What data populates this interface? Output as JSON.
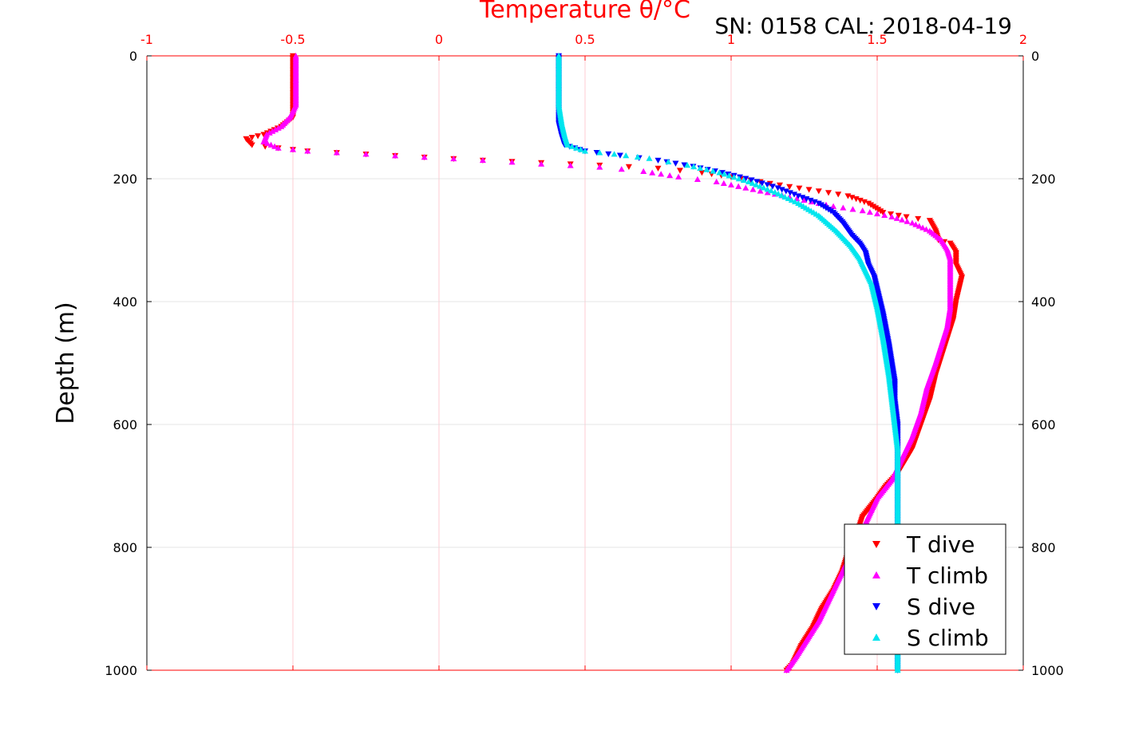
{
  "chart_data": {
    "type": "scatter",
    "title": "",
    "annotation": "SN: 0158  CAL: 2018-04-19",
    "xlabel": "Temperature θ/°C",
    "ylabel": "Depth (m)",
    "xlim": [
      -1,
      2
    ],
    "ylim": [
      1000,
      0
    ],
    "x_ticks": [
      "-1",
      "-0.5",
      "0",
      "0.5",
      "1",
      "1.5",
      "2"
    ],
    "y_ticks": [
      "0",
      "200",
      "400",
      "600",
      "800",
      "1000"
    ],
    "x_axis_position": "top",
    "y_axis_reversed": true,
    "grid": true,
    "legend_position": "bottom-right",
    "series": [
      {
        "name": "T dive",
        "color": "#ff0000",
        "marker": "triangle-down",
        "points": [
          [
            -0.5,
            0
          ],
          [
            -0.5,
            40
          ],
          [
            -0.5,
            80
          ],
          [
            -0.5,
            100
          ],
          [
            -0.54,
            115
          ],
          [
            -0.6,
            128
          ],
          [
            -0.66,
            135
          ],
          [
            -0.64,
            145
          ],
          [
            -0.55,
            150
          ],
          [
            -0.45,
            155
          ],
          [
            -0.25,
            160
          ],
          [
            -0.05,
            165
          ],
          [
            0.15,
            170
          ],
          [
            0.35,
            174
          ],
          [
            0.55,
            178
          ],
          [
            0.75,
            183
          ],
          [
            0.9,
            190
          ],
          [
            1.0,
            197
          ],
          [
            1.1,
            205
          ],
          [
            1.2,
            213
          ],
          [
            1.3,
            220
          ],
          [
            1.4,
            228
          ],
          [
            1.47,
            240
          ],
          [
            1.52,
            255
          ],
          [
            1.6,
            262
          ],
          [
            1.68,
            268
          ],
          [
            1.7,
            285
          ],
          [
            1.71,
            300
          ],
          [
            1.75,
            305
          ],
          [
            1.77,
            320
          ],
          [
            1.77,
            340
          ],
          [
            1.79,
            360
          ],
          [
            1.78,
            380
          ],
          [
            1.77,
            400
          ],
          [
            1.76,
            430
          ],
          [
            1.74,
            460
          ],
          [
            1.72,
            490
          ],
          [
            1.7,
            520
          ],
          [
            1.68,
            560
          ],
          [
            1.65,
            600
          ],
          [
            1.62,
            640
          ],
          [
            1.57,
            680
          ],
          [
            1.53,
            700
          ],
          [
            1.5,
            720
          ],
          [
            1.45,
            750
          ],
          [
            1.43,
            780
          ],
          [
            1.4,
            810
          ],
          [
            1.38,
            840
          ],
          [
            1.35,
            870
          ],
          [
            1.31,
            900
          ],
          [
            1.28,
            930
          ],
          [
            1.24,
            960
          ],
          [
            1.21,
            990
          ],
          [
            1.19,
            1000
          ]
        ]
      },
      {
        "name": "T climb",
        "color": "#ff00ff",
        "marker": "triangle-up",
        "points": [
          [
            -0.49,
            0
          ],
          [
            -0.49,
            40
          ],
          [
            -0.49,
            80
          ],
          [
            -0.51,
            100
          ],
          [
            -0.54,
            115
          ],
          [
            -0.59,
            128
          ],
          [
            -0.6,
            140
          ],
          [
            -0.55,
            150
          ],
          [
            -0.45,
            155
          ],
          [
            -0.25,
            160
          ],
          [
            -0.05,
            165
          ],
          [
            0.15,
            170
          ],
          [
            0.35,
            176
          ],
          [
            0.55,
            181
          ],
          [
            0.7,
            188
          ],
          [
            0.82,
            197
          ],
          [
            0.95,
            205
          ],
          [
            1.05,
            215
          ],
          [
            1.15,
            225
          ],
          [
            1.25,
            235
          ],
          [
            1.35,
            245
          ],
          [
            1.45,
            252
          ],
          [
            1.55,
            262
          ],
          [
            1.62,
            272
          ],
          [
            1.68,
            285
          ],
          [
            1.72,
            300
          ],
          [
            1.74,
            315
          ],
          [
            1.75,
            330
          ],
          [
            1.75,
            350
          ],
          [
            1.75,
            370
          ],
          [
            1.75,
            390
          ],
          [
            1.75,
            410
          ],
          [
            1.74,
            440
          ],
          [
            1.72,
            470
          ],
          [
            1.7,
            500
          ],
          [
            1.67,
            540
          ],
          [
            1.65,
            580
          ],
          [
            1.62,
            620
          ],
          [
            1.58,
            660
          ],
          [
            1.55,
            690
          ],
          [
            1.5,
            720
          ],
          [
            1.46,
            760
          ],
          [
            1.42,
            800
          ],
          [
            1.39,
            830
          ],
          [
            1.36,
            860
          ],
          [
            1.33,
            890
          ],
          [
            1.3,
            920
          ],
          [
            1.26,
            950
          ],
          [
            1.22,
            980
          ],
          [
            1.19,
            1000
          ]
        ]
      },
      {
        "name": "S dive",
        "color": "#0000ff",
        "marker": "triangle-down",
        "points": [
          [
            0.41,
            0
          ],
          [
            0.41,
            40
          ],
          [
            0.41,
            80
          ],
          [
            0.41,
            110
          ],
          [
            0.42,
            130
          ],
          [
            0.43,
            145
          ],
          [
            0.5,
            155
          ],
          [
            0.62,
            162
          ],
          [
            0.75,
            170
          ],
          [
            0.87,
            180
          ],
          [
            0.97,
            190
          ],
          [
            1.07,
            202
          ],
          [
            1.16,
            215
          ],
          [
            1.23,
            228
          ],
          [
            1.3,
            240
          ],
          [
            1.35,
            255
          ],
          [
            1.38,
            270
          ],
          [
            1.41,
            290
          ],
          [
            1.44,
            305
          ],
          [
            1.46,
            320
          ],
          [
            1.47,
            340
          ],
          [
            1.49,
            360
          ],
          [
            1.5,
            380
          ],
          [
            1.51,
            400
          ],
          [
            1.52,
            420
          ],
          [
            1.53,
            445
          ],
          [
            1.54,
            470
          ],
          [
            1.55,
            500
          ],
          [
            1.56,
            530
          ],
          [
            1.56,
            560
          ],
          [
            1.57,
            600
          ],
          [
            1.57,
            640
          ],
          [
            1.57,
            680
          ],
          [
            1.57,
            720
          ],
          [
            1.57,
            760
          ],
          [
            1.57,
            800
          ],
          [
            1.57,
            850
          ],
          [
            1.57,
            900
          ],
          [
            1.57,
            950
          ],
          [
            1.57,
            1000
          ]
        ]
      },
      {
        "name": "S climb",
        "color": "#00e5ee",
        "marker": "triangle-up",
        "points": [
          [
            0.41,
            0
          ],
          [
            0.41,
            40
          ],
          [
            0.41,
            80
          ],
          [
            0.42,
            110
          ],
          [
            0.43,
            130
          ],
          [
            0.44,
            145
          ],
          [
            0.5,
            155
          ],
          [
            0.6,
            160
          ],
          [
            0.72,
            167
          ],
          [
            0.85,
            178
          ],
          [
            0.96,
            190
          ],
          [
            1.06,
            205
          ],
          [
            1.15,
            222
          ],
          [
            1.23,
            240
          ],
          [
            1.3,
            260
          ],
          [
            1.36,
            285
          ],
          [
            1.41,
            310
          ],
          [
            1.44,
            330
          ],
          [
            1.46,
            350
          ],
          [
            1.48,
            370
          ],
          [
            1.49,
            390
          ],
          [
            1.5,
            410
          ],
          [
            1.51,
            435
          ],
          [
            1.52,
            460
          ],
          [
            1.53,
            490
          ],
          [
            1.54,
            520
          ],
          [
            1.55,
            560
          ],
          [
            1.56,
            600
          ],
          [
            1.57,
            640
          ],
          [
            1.57,
            680
          ],
          [
            1.57,
            720
          ],
          [
            1.57,
            760
          ],
          [
            1.57,
            800
          ],
          [
            1.57,
            850
          ],
          [
            1.57,
            900
          ],
          [
            1.57,
            950
          ],
          [
            1.57,
            1000
          ]
        ]
      }
    ]
  }
}
